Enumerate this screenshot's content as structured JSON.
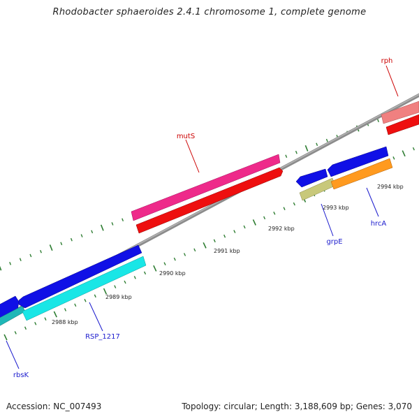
{
  "title": "Rhodobacter sphaeroides 2.4.1 chromosome 1, complete genome",
  "footer": {
    "accession": "Accession: NC_007493",
    "summary": "Topology: circular; Length: 3,188,609 bp; Genes: 3,070"
  },
  "colors": {
    "backbone": "#8c8c8c",
    "tick": "#2e7d32",
    "gene_label_blue": "#1a1acd",
    "gene_label_red": "#cc0000"
  },
  "scale_labels": [
    "2988 kbp",
    "2989 kbp",
    "2990 kbp",
    "2991 kbp",
    "2992 kbp",
    "2993 kbp",
    "2994 kbp"
  ],
  "gene_labels": [
    {
      "name": "rbsK",
      "color": "#1a1acd"
    },
    {
      "name": "RSP_1217",
      "color": "#1a1acd"
    },
    {
      "name": "mutS",
      "color": "#cc0000"
    },
    {
      "name": "grpE",
      "color": "#1a1acd"
    },
    {
      "name": "hrcA",
      "color": "#1a1acd"
    },
    {
      "name": "rph",
      "color": "#cc0000"
    }
  ]
}
